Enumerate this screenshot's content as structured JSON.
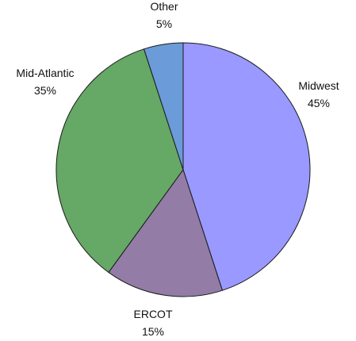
{
  "chart_data": {
    "type": "pie",
    "title": "",
    "slices": [
      {
        "label": "Midwest",
        "value": 45,
        "value_label": "45%",
        "color": "#9999ff"
      },
      {
        "label": "ERCOT",
        "value": 15,
        "value_label": "15%",
        "color": "#937ca6"
      },
      {
        "label": "Mid-Atlantic",
        "value": 35,
        "value_label": "35%",
        "color": "#66a866"
      },
      {
        "label": "Other",
        "value": 5,
        "value_label": "5%",
        "color": "#6b9bd8"
      }
    ],
    "start_angle_deg": 0,
    "direction": "clockwise",
    "legend": "none"
  }
}
